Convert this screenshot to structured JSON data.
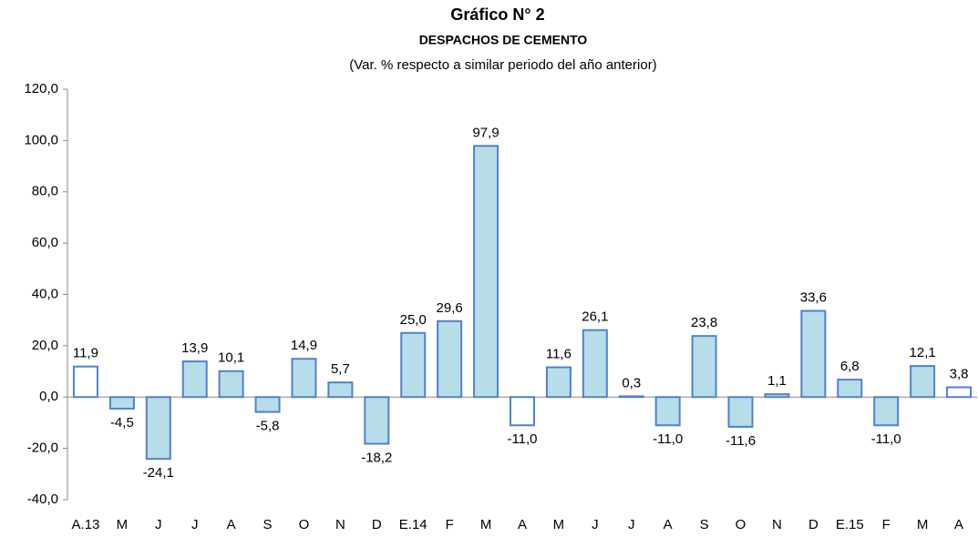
{
  "chart_data": {
    "type": "bar",
    "title": "Gráfico N° 2",
    "subtitle": "DESPACHOS DE CEMENTO",
    "note": "(Var. % respecto a similar periodo del año anterior)",
    "categories": [
      "A.13",
      "M",
      "J",
      "J",
      "A",
      "S",
      "O",
      "N",
      "D",
      "E.14",
      "F",
      "M",
      "A",
      "M",
      "J",
      "J",
      "A",
      "S",
      "O",
      "N",
      "D",
      "E.15",
      "F",
      "M",
      "A"
    ],
    "values": [
      11.9,
      -4.5,
      -24.1,
      13.9,
      10.1,
      -5.8,
      14.9,
      5.7,
      -18.2,
      25.0,
      29.6,
      97.9,
      -11.0,
      11.6,
      26.1,
      0.3,
      -11.0,
      23.8,
      -11.6,
      1.1,
      33.6,
      6.8,
      -11.0,
      12.1,
      3.8
    ],
    "value_labels": [
      "11,9",
      "-4,5",
      "-24,1",
      "13,9",
      "10,1",
      "-5,8",
      "14,9",
      "5,7",
      "-18,2",
      "25,0",
      "29,6",
      "97,9",
      "-11,0",
      "11,6",
      "26,1",
      "0,3",
      "-11,0",
      "23,8",
      "-11,6",
      "1,1",
      "33,6",
      "6,8",
      "-11,0",
      "12,1",
      "3,8"
    ],
    "colors": [
      "#ffffff",
      "#b7dde8",
      "#b7dde8",
      "#b7dde8",
      "#b7dde8",
      "#b7dde8",
      "#b7dde8",
      "#b7dde8",
      "#b7dde8",
      "#b7dde8",
      "#b7dde8",
      "#b7dde8",
      "#ffffff",
      "#b7dde8",
      "#b7dde8",
      "#b7dde8",
      "#b7dde8",
      "#b7dde8",
      "#b7dde8",
      "#b7dde8",
      "#b7dde8",
      "#b7dde8",
      "#b7dde8",
      "#b7dde8",
      "#ffffff"
    ],
    "edge_color": "#4f81d0",
    "ylim": [
      -40,
      120
    ],
    "yticks": [
      {
        "value": -40,
        "label": "-40,0"
      },
      {
        "value": -20,
        "label": "-20,0"
      },
      {
        "value": 0,
        "label": "0,0"
      },
      {
        "value": 20,
        "label": "20,0"
      },
      {
        "value": 40,
        "label": "40,0"
      },
      {
        "value": 60,
        "label": "60,0"
      },
      {
        "value": 80,
        "label": "80,0"
      },
      {
        "value": 100,
        "label": "100,0"
      },
      {
        "value": 120,
        "label": "120,0"
      }
    ],
    "grid": false
  }
}
